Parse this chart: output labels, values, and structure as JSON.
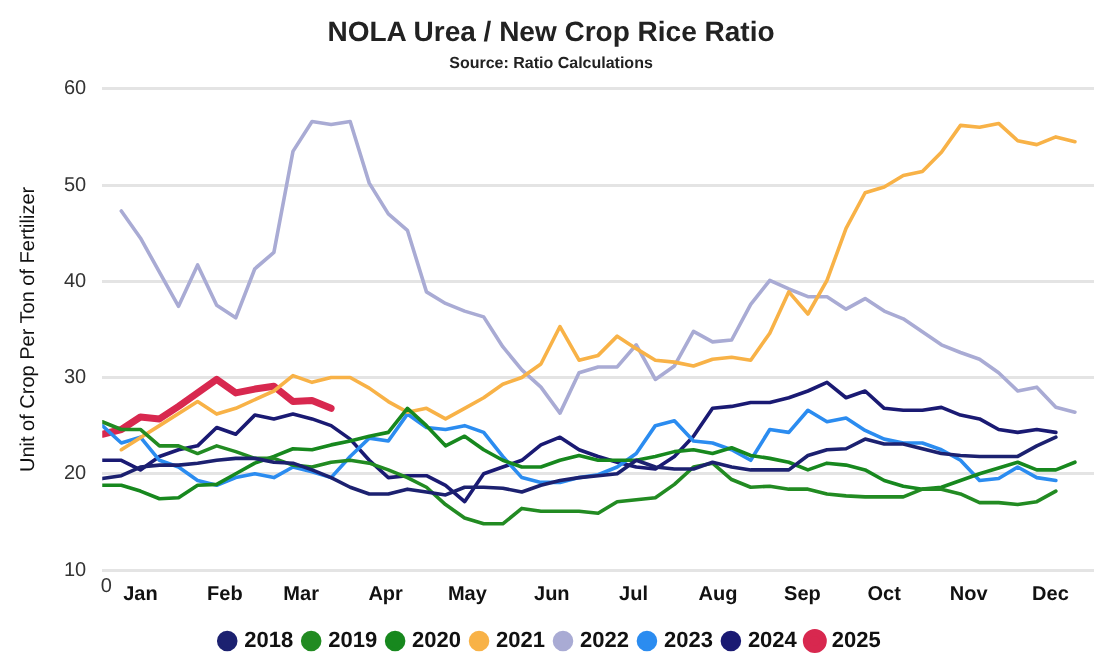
{
  "chart_data": {
    "type": "line",
    "title": "NOLA Urea / New Crop Rice Ratio",
    "subtitle": "Source: Ratio Calculations",
    "ylabel": "Unit of Crop Per Ton of Fertilizer",
    "annotations": [
      "0"
    ],
    "x": [
      "--01-01",
      "--01-08",
      "--01-15",
      "--01-22",
      "--01-29",
      "--02-05",
      "--02-12",
      "--02-19",
      "--02-26",
      "--03-05",
      "--03-12",
      "--03-19",
      "--03-26",
      "--04-02",
      "--04-09",
      "--04-16",
      "--04-23",
      "--04-30",
      "--05-07",
      "--05-14",
      "--05-21",
      "--05-28",
      "--06-04",
      "--06-11",
      "--06-18",
      "--06-25",
      "--07-02",
      "--07-09",
      "--07-16",
      "--07-23",
      "--07-30",
      "--08-06",
      "--08-13",
      "--08-20",
      "--08-27",
      "--09-03",
      "--09-10",
      "--09-17",
      "--09-24",
      "--10-01",
      "--10-08",
      "--10-15",
      "--10-22",
      "--10-29",
      "--11-05",
      "--11-12",
      "--11-19",
      "--11-26",
      "--12-03",
      "--12-10",
      "--12-17",
      "--12-24"
    ],
    "xlim": [
      "--01-01",
      "--12-31"
    ],
    "xticks": [
      {
        "value": "--01-15",
        "label": "Jan"
      },
      {
        "value": "--02-15",
        "label": "Feb"
      },
      {
        "value": "--03-15",
        "label": "Mar"
      },
      {
        "value": "--04-15",
        "label": "Apr"
      },
      {
        "value": "--05-15",
        "label": "May"
      },
      {
        "value": "--06-15",
        "label": "Jun"
      },
      {
        "value": "--07-15",
        "label": "Jul"
      },
      {
        "value": "--08-15",
        "label": "Aug"
      },
      {
        "value": "--09-15",
        "label": "Sep"
      },
      {
        "value": "--10-15",
        "label": "Oct"
      },
      {
        "value": "--11-15",
        "label": "Nov"
      },
      {
        "value": "--12-15",
        "label": "Dec"
      }
    ],
    "ylim": [
      10,
      60
    ],
    "yticks": [
      10,
      20,
      30,
      40,
      50,
      60
    ],
    "grid": "y",
    "legend": "bottom",
    "marker": "none",
    "line_style": "solid",
    "series": [
      {
        "name": "2018",
        "color": "#1c2170",
        "x": [
          "--01-01",
          "--01-08",
          "--01-15",
          "--01-22",
          "--01-29",
          "--02-05",
          "--02-12",
          "--02-19",
          "--02-26",
          "--03-05",
          "--03-12",
          "--03-19",
          "--03-26",
          "--04-02",
          "--04-09",
          "--04-16",
          "--04-23",
          "--04-30",
          "--05-07",
          "--05-14",
          "--05-21",
          "--05-28",
          "--06-04",
          "--06-11",
          "--06-18",
          "--06-25",
          "--07-02",
          "--07-09",
          "--07-16",
          "--07-23",
          "--07-30",
          "--08-06",
          "--08-13",
          "--08-20",
          "--08-27",
          "--09-03",
          "--09-10",
          "--09-17",
          "--09-24",
          "--10-01",
          "--10-08",
          "--10-15",
          "--10-22",
          "--10-29",
          "--11-05",
          "--11-12",
          "--11-19",
          "--11-26",
          "--12-03",
          "--12-10",
          "--12-17"
        ],
        "values": [
          19.5,
          19.8,
          20.7,
          20.9,
          20.9,
          21.1,
          21.4,
          21.6,
          21.6,
          21.2,
          21.1,
          20.4,
          19.6,
          18.6,
          17.9,
          17.9,
          18.4,
          18.1,
          17.8,
          18.6,
          18.6,
          18.5,
          18.1,
          18.8,
          19.3,
          19.6,
          19.8,
          20,
          21.4,
          20.7,
          20.5,
          20.5,
          21.2,
          20.7,
          20.4,
          20.4,
          20.4,
          21.9,
          22.5,
          22.6,
          23.6,
          23.1,
          23.1,
          22.6,
          22.1,
          21.9,
          21.8,
          21.8,
          21.8,
          22.9,
          23.8
        ]
      },
      {
        "name": "2019",
        "color": "#228b22",
        "x": [
          "--01-01",
          "--01-08",
          "--01-15",
          "--01-22",
          "--01-29",
          "--02-05",
          "--02-12",
          "--02-19",
          "--02-26",
          "--03-05",
          "--03-12",
          "--03-19",
          "--03-26",
          "--04-02",
          "--04-09",
          "--04-16",
          "--04-23",
          "--04-30",
          "--05-07",
          "--05-14",
          "--05-21",
          "--05-28",
          "--06-04",
          "--06-11",
          "--06-18",
          "--06-25",
          "--07-02",
          "--07-09",
          "--07-16",
          "--07-23",
          "--07-30",
          "--08-06",
          "--08-13",
          "--08-20",
          "--08-27",
          "--09-03",
          "--09-10",
          "--09-17",
          "--09-24",
          "--10-01",
          "--10-08",
          "--10-15",
          "--10-22",
          "--10-29",
          "--11-05",
          "--11-12",
          "--11-19",
          "--11-26",
          "--12-03",
          "--12-10",
          "--12-17"
        ],
        "values": [
          25.4,
          24.6,
          24.6,
          22.9,
          22.9,
          22.1,
          22.9,
          22.3,
          21.6,
          21.6,
          20.9,
          20.7,
          21.2,
          21.4,
          21.1,
          20.4,
          19.6,
          18.6,
          16.8,
          15.4,
          14.8,
          14.8,
          16.4,
          16.1,
          16.1,
          16.1,
          15.9,
          17.1,
          17.3,
          17.5,
          18.9,
          20.7,
          21.1,
          19.4,
          18.6,
          18.7,
          18.4,
          18.4,
          17.9,
          17.7,
          17.6,
          17.6,
          17.6,
          18.4,
          18.4,
          17.9,
          17,
          17,
          16.8,
          17.1,
          18.2
        ]
      },
      {
        "name": "2020",
        "color": "#17881e",
        "values": [
          18.8,
          18.8,
          18.2,
          17.4,
          17.5,
          18.8,
          18.9,
          20,
          21.1,
          21.8,
          22.6,
          22.5,
          23,
          23.4,
          23.9,
          24.3,
          26.8,
          25,
          22.9,
          23.9,
          22.5,
          21.4,
          20.7,
          20.7,
          21.4,
          21.9,
          21.4,
          21.4,
          21.4,
          21.8,
          22.3,
          22.5,
          22.1,
          22.7,
          21.9,
          21.6,
          21.2,
          20.4,
          21.1,
          20.9,
          20.4,
          19.3,
          18.7,
          18.4,
          18.6,
          19.3,
          20,
          20.6,
          21.2,
          20.4,
          20.4,
          21.2
        ]
      },
      {
        "name": "2021",
        "color": "#f8b247",
        "x": [
          "--01-08",
          "--01-22",
          "--02-05",
          "--02-12",
          "--02-19",
          "--03-05",
          "--03-12",
          "--03-19",
          "--03-26",
          "--04-02",
          "--04-09",
          "--04-16",
          "--04-23",
          "--04-30",
          "--05-07",
          "--05-14",
          "--05-21",
          "--05-28",
          "--06-04",
          "--06-11",
          "--06-18",
          "--06-25",
          "--07-02",
          "--07-09",
          "--07-16",
          "--07-23",
          "--07-30",
          "--08-06",
          "--08-13",
          "--08-20",
          "--08-27",
          "--09-03",
          "--09-10",
          "--09-17",
          "--09-24",
          "--10-01",
          "--10-08",
          "--10-15",
          "--10-22",
          "--10-29",
          "--11-05",
          "--11-12",
          "--11-19",
          "--11-26",
          "--12-03",
          "--12-10",
          "--12-17",
          "--12-24"
        ],
        "values": [
          22.5,
          25,
          27.5,
          26.2,
          26.8,
          28.6,
          30.2,
          29.5,
          30,
          30,
          28.9,
          27.5,
          26.4,
          26.8,
          25.7,
          26.8,
          27.9,
          29.3,
          30,
          31.4,
          35.3,
          31.8,
          32.3,
          34.3,
          33,
          31.8,
          31.6,
          31.2,
          31.9,
          32.1,
          31.8,
          34.6,
          38.9,
          36.6,
          40.1,
          45.5,
          49.2,
          49.8,
          51,
          51.4,
          53.4,
          56.2,
          56,
          56.4,
          54.6,
          54.2,
          55,
          54.5
        ]
      },
      {
        "name": "2022",
        "color": "#a9abd4",
        "x": [
          "--01-08",
          "--01-15",
          "--01-29",
          "--02-05",
          "--02-12",
          "--02-19",
          "--02-26",
          "--03-05",
          "--03-12",
          "--03-19",
          "--03-26",
          "--04-02",
          "--04-09",
          "--04-16",
          "--04-23",
          "--04-30",
          "--05-07",
          "--05-14",
          "--05-21",
          "--05-28",
          "--06-04",
          "--06-11",
          "--06-18",
          "--06-25",
          "--07-02",
          "--07-09",
          "--07-16",
          "--07-23",
          "--07-30",
          "--08-06",
          "--08-13",
          "--08-20",
          "--08-27",
          "--09-03",
          "--09-10",
          "--09-17",
          "--09-24",
          "--10-01",
          "--10-08",
          "--10-15",
          "--10-22",
          "--11-05",
          "--11-12",
          "--11-19",
          "--11-26",
          "--12-03",
          "--12-10",
          "--12-17",
          "--12-24"
        ],
        "values": [
          47.3,
          44.5,
          37.4,
          41.7,
          37.5,
          36.2,
          41.3,
          43,
          53.5,
          56.6,
          56.3,
          56.6,
          50.2,
          47,
          45.3,
          38.9,
          37.7,
          36.9,
          36.3,
          33.2,
          30.8,
          29,
          26.3,
          30.5,
          31.1,
          31.1,
          33.4,
          29.8,
          31.2,
          34.8,
          33.7,
          33.9,
          37.6,
          40.1,
          39.2,
          38.4,
          38.4,
          37.1,
          38.2,
          36.9,
          36.1,
          33.4,
          32.6,
          31.9,
          30.5,
          28.6,
          29,
          26.9,
          26.4
        ]
      },
      {
        "name": "2023",
        "color": "#2b8cf0",
        "x": [
          "--01-01",
          "--01-08",
          "--01-15",
          "--01-22",
          "--01-29",
          "--02-05",
          "--02-12",
          "--02-19",
          "--02-26",
          "--03-05",
          "--03-12",
          "--03-19",
          "--03-26",
          "--04-02",
          "--04-09",
          "--04-16",
          "--04-23",
          "--04-30",
          "--05-07",
          "--05-14",
          "--05-21",
          "--05-28",
          "--06-04",
          "--06-11",
          "--06-18",
          "--06-25",
          "--07-02",
          "--07-09",
          "--07-16",
          "--07-23",
          "--07-30",
          "--08-06",
          "--08-13",
          "--08-20",
          "--08-27",
          "--09-03",
          "--09-10",
          "--09-17",
          "--09-24",
          "--10-01",
          "--10-08",
          "--10-15",
          "--10-22",
          "--10-29",
          "--11-05",
          "--11-12",
          "--11-19",
          "--11-26",
          "--12-03",
          "--12-10",
          "--12-17"
        ],
        "values": [
          25,
          23.2,
          23.8,
          21.4,
          20.7,
          19.3,
          18.8,
          19.6,
          20,
          19.6,
          20.7,
          20.2,
          19.6,
          21.8,
          23.7,
          23.4,
          26.2,
          24.8,
          24.6,
          25,
          24.3,
          21.8,
          19.6,
          19.1,
          19.1,
          19.6,
          19.9,
          20.7,
          22.1,
          25,
          25.5,
          23.4,
          23.2,
          22.5,
          21.4,
          24.6,
          24.3,
          26.6,
          25.4,
          25.8,
          24.5,
          23.6,
          23.2,
          23.2,
          22.5,
          21.4,
          19.3,
          19.5,
          20.7,
          19.6,
          19.3
        ]
      },
      {
        "name": "2024",
        "color": "#1a1a73",
        "x": [
          "--01-01",
          "--01-08",
          "--01-15",
          "--01-22",
          "--01-29",
          "--02-05",
          "--02-12",
          "--02-19",
          "--02-26",
          "--03-05",
          "--03-12",
          "--03-19",
          "--03-26",
          "--04-02",
          "--04-09",
          "--04-16",
          "--04-23",
          "--04-30",
          "--05-07",
          "--05-14",
          "--05-21",
          "--05-28",
          "--06-04",
          "--06-11",
          "--06-18",
          "--06-25",
          "--07-02",
          "--07-09",
          "--07-16",
          "--07-23",
          "--07-30",
          "--08-06",
          "--08-13",
          "--08-20",
          "--08-27",
          "--09-03",
          "--09-10",
          "--09-17",
          "--09-24",
          "--10-01",
          "--10-08",
          "--10-15",
          "--10-22",
          "--10-29",
          "--11-05",
          "--11-12",
          "--11-19",
          "--11-26",
          "--12-03",
          "--12-10",
          "--12-17"
        ],
        "values": [
          21.4,
          21.4,
          20.4,
          21.8,
          22.5,
          22.9,
          24.8,
          24.1,
          26.1,
          25.7,
          26.2,
          25.7,
          25,
          23.6,
          21.4,
          19.6,
          19.8,
          19.8,
          18.8,
          17.1,
          20,
          20.7,
          21.4,
          23,
          23.8,
          22.5,
          21.8,
          21.2,
          20.7,
          20.5,
          21.8,
          23.9,
          26.8,
          27,
          27.4,
          27.4,
          27.9,
          28.6,
          29.5,
          27.9,
          28.6,
          26.8,
          26.6,
          26.6,
          26.9,
          26.1,
          25.7,
          24.6,
          24.3,
          24.6,
          24.3
        ]
      },
      {
        "name": "2025",
        "color": "#d8284f",
        "x": [
          "--01-01",
          "--01-08",
          "--01-15",
          "--01-22",
          "--01-29",
          "--02-05",
          "--02-12",
          "--02-19",
          "--02-26",
          "--03-05",
          "--03-12",
          "--03-19",
          "--03-26"
        ],
        "values": [
          24.1,
          24.6,
          25.9,
          25.7,
          27,
          28.4,
          29.8,
          28.4,
          28.8,
          29.1,
          27.5,
          27.6,
          26.8
        ]
      }
    ]
  }
}
